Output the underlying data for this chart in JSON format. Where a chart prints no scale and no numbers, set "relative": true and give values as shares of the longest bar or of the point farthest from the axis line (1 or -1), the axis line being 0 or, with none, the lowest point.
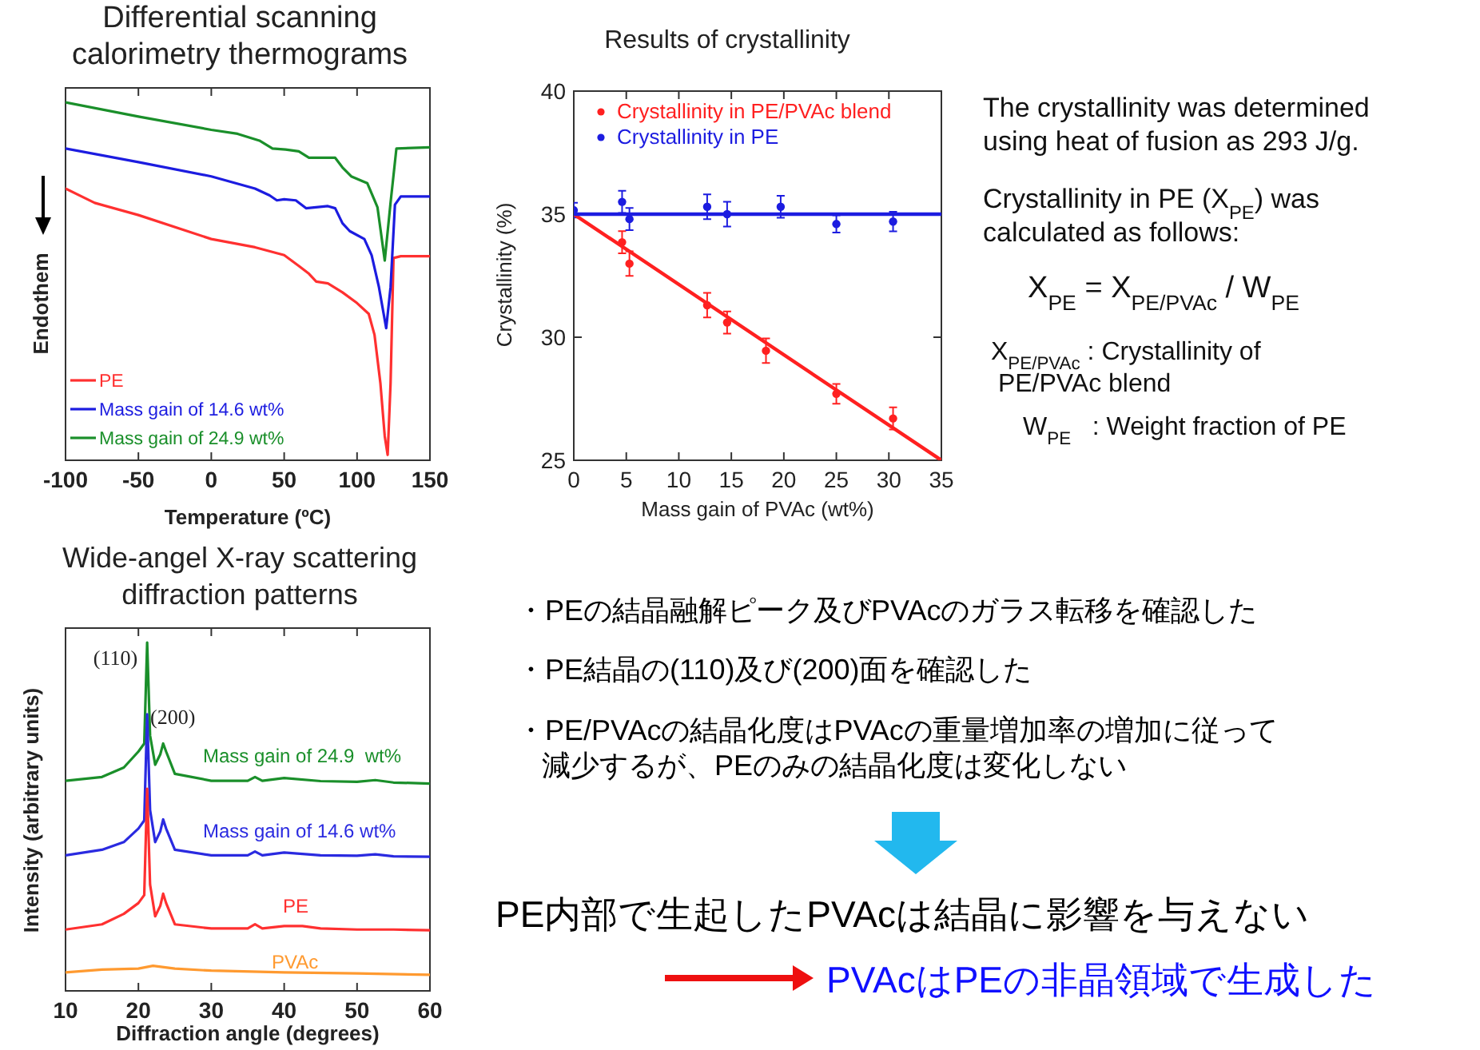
{
  "chart_data": [
    {
      "type": "line",
      "title": "Differential scanning\ncalorimetry thermograms",
      "xlabel": "Temperature (ºC)",
      "ylabel": "Endothem",
      "relative": true,
      "xlim": [
        -100,
        150
      ],
      "xticks": [
        -100,
        -50,
        0,
        50,
        100,
        150
      ],
      "legend": "bottom left",
      "series": [
        {
          "name": "PE",
          "color": "#ff3030",
          "x": [
            -100,
            -80,
            -50,
            0,
            30,
            50,
            60,
            67,
            72,
            80,
            90,
            100,
            108,
            112,
            116,
            119,
            121,
            123,
            125,
            130,
            150
          ],
          "values": [
            0.759,
            0.719,
            0.685,
            0.618,
            0.595,
            0.573,
            0.543,
            0.521,
            0.499,
            0.494,
            0.469,
            0.439,
            0.409,
            0.35,
            0.216,
            0.067,
            0.015,
            0.216,
            0.565,
            0.57,
            0.57
          ]
        },
        {
          "name": "Mass gain of 14.6 wt%",
          "color": "#1c1ce0",
          "x": [
            -100,
            -50,
            0,
            30,
            40,
            45,
            50,
            58,
            65,
            80,
            85,
            90,
            95,
            105,
            110,
            115,
            120,
            123,
            126,
            130,
            150
          ],
          "values": [
            0.871,
            0.833,
            0.793,
            0.759,
            0.74,
            0.726,
            0.729,
            0.726,
            0.704,
            0.71,
            0.704,
            0.662,
            0.64,
            0.618,
            0.573,
            0.484,
            0.369,
            0.484,
            0.714,
            0.737,
            0.737
          ]
        },
        {
          "name": "Mass gain of 24.9 wt%",
          "color": "#1a8f2a",
          "x": [
            -100,
            -50,
            0,
            18,
            33,
            42,
            51,
            60,
            67,
            85,
            90,
            96,
            107,
            114,
            119,
            123,
            127,
            150
          ],
          "values": [
            1.0,
            0.96,
            0.923,
            0.912,
            0.893,
            0.871,
            0.868,
            0.863,
            0.845,
            0.845,
            0.818,
            0.793,
            0.774,
            0.707,
            0.558,
            0.72,
            0.871,
            0.874
          ]
        }
      ]
    },
    {
      "type": "scatter",
      "title": "Results of crystallinity",
      "xlabel": "Mass gain of PVAc (wt%)",
      "ylabel": "Crystallinity (%)",
      "xlim": [
        0,
        35
      ],
      "xticks": [
        0,
        5,
        10,
        15,
        20,
        25,
        30,
        35
      ],
      "ylim": [
        25,
        40
      ],
      "yticks": [
        25,
        30,
        35,
        40
      ],
      "legend": "top left",
      "series": [
        {
          "name": "Crystallinity in PE/PVAc blend",
          "color": "#ff2020",
          "x": [
            4.6,
            5.3,
            12.7,
            14.6,
            18.3,
            25.0,
            30.4
          ],
          "values": [
            33.86,
            32.99,
            31.3,
            30.6,
            29.45,
            27.7,
            26.7
          ],
          "marker": "circle",
          "errors": [
            0.45,
            0.5,
            0.5,
            0.45,
            0.5,
            0.4,
            0.45
          ]
        },
        {
          "name": "Crystallinity in PE",
          "color": "#1c1ce0",
          "x": [
            0,
            4.6,
            5.3,
            12.7,
            14.6,
            19.7,
            25.0,
            30.4
          ],
          "values": [
            35.16,
            35.5,
            34.8,
            35.3,
            35.0,
            35.3,
            34.6,
            34.7
          ],
          "marker": "circle",
          "errors": [
            0.3,
            0.45,
            0.45,
            0.5,
            0.5,
            0.45,
            0.35,
            0.4
          ]
        },
        {
          "type": "line",
          "color": "#ff2020",
          "x": [
            0,
            35
          ],
          "values": [
            35,
            25
          ]
        },
        {
          "type": "line",
          "color": "#1c1ce0",
          "x": [
            0,
            35
          ],
          "values": [
            35,
            35
          ]
        }
      ]
    },
    {
      "type": "other",
      "annotations": [
        "The crystallinity was determined\nusing heat of fusion as 293 J/g.",
        "Crystallinity in PE (X$_{PE}$) was\ncalculated as follows:",
        "X$_{PE}$ = X$_{PE/PVAc}$ / W$_{PE}$",
        "X$_{PE/PVAc}$ : Crystallinity of\n PE/PVAc blend",
        "W$_{PE}$   : Weight fraction of PE"
      ]
    },
    {
      "type": "line",
      "title": "Wide-angel X-ray scattering\ndiffraction patterns",
      "xlabel": "Diffraction angle (degrees)",
      "ylabel": "Intensity (arbitrary units)",
      "relative": true,
      "xlim": [
        10,
        60
      ],
      "xticks": [
        10,
        20,
        30,
        40,
        50,
        60
      ],
      "annotations": [
        {
          "text": "(110)",
          "x": 21.2,
          "y": 1.0
        },
        {
          "text": "(200)",
          "x": 23.4,
          "y": 0.71
        }
      ],
      "series": [
        {
          "name": "Mass gain of 24.9  wt%",
          "color": "#1a8f2a",
          "x": [
            10,
            15,
            18,
            20,
            20.8,
            21.2,
            21.6,
            22.3,
            23,
            23.4,
            23.8,
            25,
            30,
            35,
            36,
            37,
            40,
            45,
            50,
            52.5,
            55,
            60
          ],
          "values": [
            0.603,
            0.614,
            0.641,
            0.687,
            0.71,
            1.0,
            0.733,
            0.649,
            0.679,
            0.71,
            0.687,
            0.623,
            0.603,
            0.603,
            0.614,
            0.603,
            0.611,
            0.602,
            0.6,
            0.605,
            0.598,
            0.595
          ]
        },
        {
          "name": "Mass gain of 14.6 wt%",
          "color": "#2a2ae0",
          "x": [
            10,
            15,
            18,
            20,
            20.8,
            21.2,
            21.6,
            22.3,
            23,
            23.4,
            23.8,
            25,
            30,
            35,
            36,
            37,
            40,
            45,
            50,
            52.5,
            55,
            60
          ],
          "values": [
            0.389,
            0.405,
            0.427,
            0.466,
            0.489,
            0.794,
            0.519,
            0.427,
            0.458,
            0.492,
            0.466,
            0.405,
            0.389,
            0.389,
            0.4,
            0.389,
            0.397,
            0.389,
            0.388,
            0.392,
            0.386,
            0.385
          ]
        },
        {
          "name": "PE",
          "color": "#ff3030",
          "x": [
            10,
            15,
            18,
            20,
            20.8,
            21.2,
            21.6,
            22.3,
            23,
            23.4,
            23.8,
            25,
            30,
            35,
            36,
            37,
            40,
            42.5,
            45,
            50,
            55,
            60
          ],
          "values": [
            0.176,
            0.191,
            0.221,
            0.252,
            0.275,
            0.58,
            0.305,
            0.214,
            0.244,
            0.279,
            0.252,
            0.191,
            0.179,
            0.179,
            0.191,
            0.179,
            0.186,
            0.186,
            0.179,
            0.176,
            0.176,
            0.174
          ]
        },
        {
          "name": "PVAc",
          "color": "#ff9a30",
          "x": [
            10,
            15,
            20,
            22,
            25,
            30,
            40,
            50,
            60
          ],
          "values": [
            0.053,
            0.061,
            0.064,
            0.072,
            0.064,
            0.058,
            0.053,
            0.05,
            0.046
          ]
        }
      ]
    },
    {
      "type": "other",
      "annotations": [
        "・PEの結晶融解ピーク及びPVAcのガラス転移を確認した",
        "・PE結晶の(110)及び(200)面を確認した",
        "・PE/PVAcの結晶化度はPVAcの重量増加率の増加に従って",
        "減少するが、PEのみの結晶化度は変化しない",
        "PE内部で生起したPVAcは結晶に影響を与えない",
        "PVAcはPEの非晶領域で生成した"
      ]
    }
  ]
}
